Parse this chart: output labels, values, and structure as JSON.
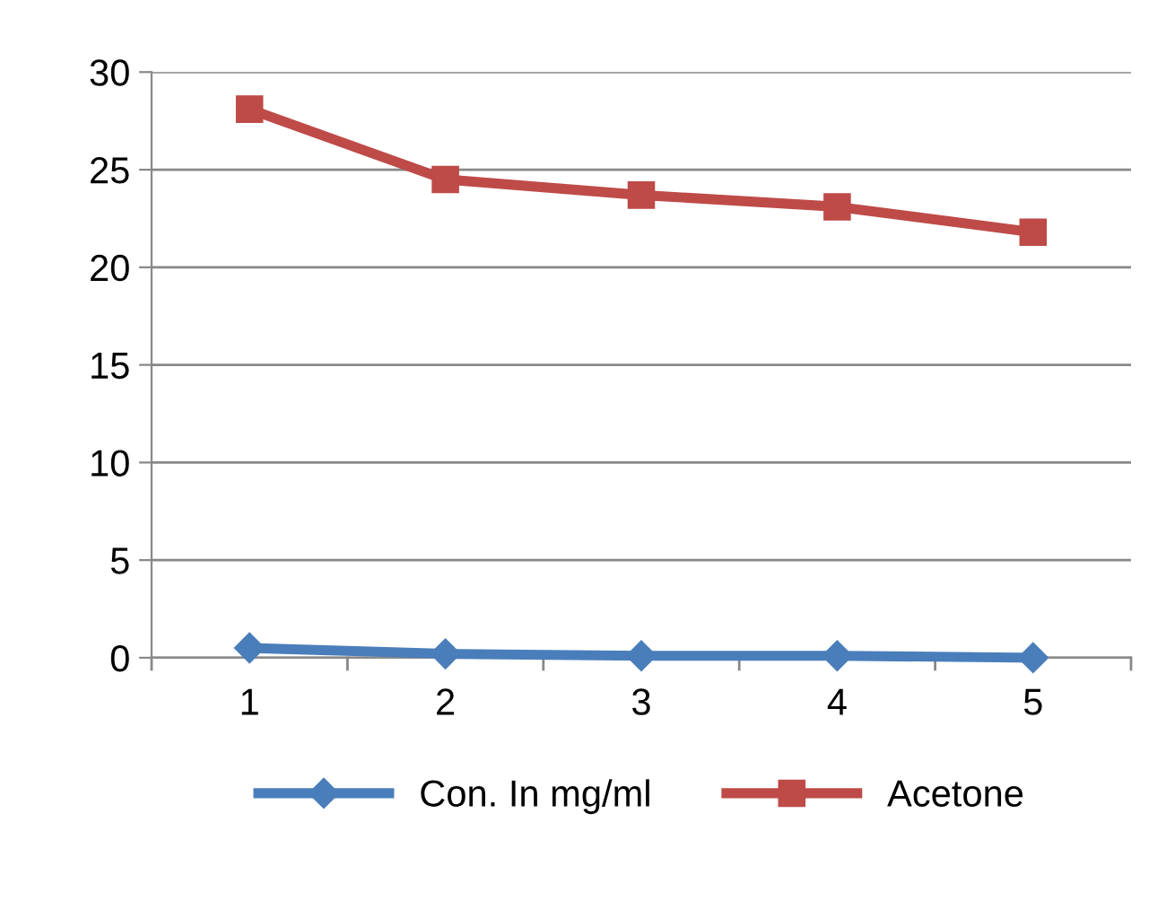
{
  "chart_data": {
    "type": "line",
    "categories": [
      "1",
      "2",
      "3",
      "4",
      "5"
    ],
    "series": [
      {
        "name": "Con. In mg/ml",
        "color": "#4a7ebb",
        "marker": "diamond",
        "values": [
          0.5,
          0.2,
          0.1,
          0.1,
          0.0
        ]
      },
      {
        "name": "Acetone",
        "color": "#be4b48",
        "marker": "square",
        "values": [
          28.1,
          24.5,
          23.7,
          23.1,
          21.8
        ]
      }
    ],
    "ylim": [
      0,
      30
    ],
    "yticks": [
      0,
      5,
      10,
      15,
      20,
      25,
      30
    ],
    "grid": "y",
    "legend": "bottom",
    "line_style": "solid"
  }
}
